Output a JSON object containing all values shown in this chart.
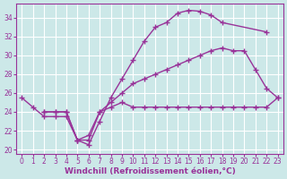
{
  "xlabel": "Windchill (Refroidissement éolien,°C)",
  "xlim": [
    -0.5,
    23.5
  ],
  "ylim": [
    19.5,
    35.5
  ],
  "yticks": [
    20,
    22,
    24,
    26,
    28,
    30,
    32,
    34
  ],
  "xticks": [
    0,
    1,
    2,
    3,
    4,
    5,
    6,
    7,
    8,
    9,
    10,
    11,
    12,
    13,
    14,
    15,
    16,
    17,
    18,
    19,
    20,
    21,
    22,
    23
  ],
  "background_color": "#cce8e8",
  "grid_color": "#aacccc",
  "line_color": "#993399",
  "line1_x": [
    0,
    1,
    2,
    3,
    4,
    5,
    6,
    7,
    8,
    9,
    10,
    11,
    12,
    13,
    14,
    15,
    16,
    17,
    18,
    22
  ],
  "line1_y": [
    25.5,
    24.5,
    23.5,
    23.5,
    23.5,
    21.0,
    20.5,
    23.0,
    25.5,
    27.5,
    29.5,
    31.5,
    33.0,
    33.5,
    34.5,
    34.8,
    34.7,
    34.3,
    33.5,
    32.5
  ],
  "line2_x": [
    2,
    3,
    4,
    5,
    6,
    7,
    8,
    9,
    10,
    11,
    12,
    13,
    14,
    15,
    16,
    17,
    18,
    19,
    20,
    21,
    22,
    23
  ],
  "line2_y": [
    24.0,
    24.0,
    24.0,
    21.0,
    21.5,
    24.0,
    25.0,
    26.0,
    27.0,
    27.5,
    28.0,
    28.5,
    29.0,
    29.5,
    30.0,
    30.5,
    30.8,
    30.5,
    30.5,
    28.5,
    26.5,
    25.5
  ],
  "line3_x": [
    2,
    3,
    4,
    5,
    6,
    7,
    8,
    9,
    10,
    11,
    12,
    13,
    14,
    15,
    16,
    17,
    18,
    19,
    20,
    21,
    22,
    23
  ],
  "line3_y": [
    24.0,
    24.0,
    24.0,
    21.0,
    21.0,
    24.0,
    24.5,
    25.0,
    24.5,
    24.5,
    24.5,
    24.5,
    24.5,
    24.5,
    24.5,
    24.5,
    24.5,
    24.5,
    24.5,
    24.5,
    24.5,
    25.5
  ],
  "marker": "+",
  "markersize": 4,
  "linewidth": 1.0,
  "tick_fontsize": 5.5,
  "label_fontsize": 6.5
}
